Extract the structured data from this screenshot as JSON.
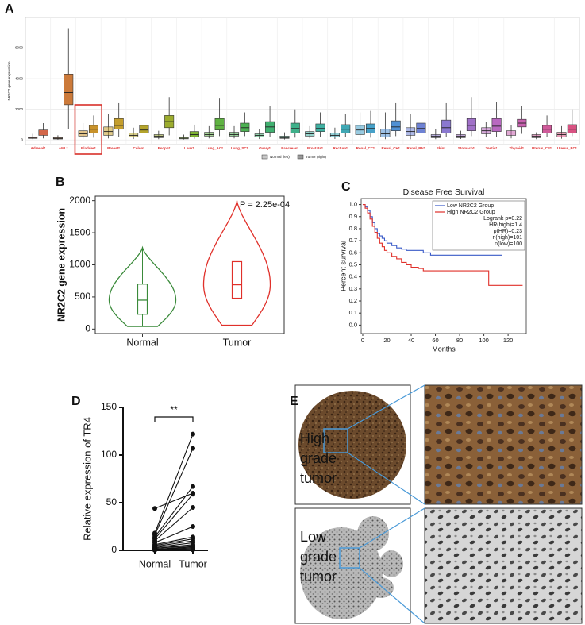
{
  "chart_data": [
    {
      "type": "box",
      "panel": "A",
      "y_label": "NR2C2 gene expression",
      "categories": [
        "Adrenal*",
        "AML*",
        "Bladder*",
        "Breast*",
        "Colon*",
        "Esoph*",
        "Liver*",
        "Lung_AC*",
        "Lung_SC*",
        "Ovary*",
        "Pancreas*",
        "Prostate*",
        "Rectum*",
        "Renal_CC*",
        "Renal_CH*",
        "Renal_PA*",
        "Skin*",
        "Stomach*",
        "Testis*",
        "Thyroid*",
        "Uterus_CS*",
        "Uterus_EC*"
      ],
      "colors": [
        "#d4684a",
        "#cc7a3a",
        "#c8922a",
        "#c49e2c",
        "#b4a42c",
        "#9cac2e",
        "#7eb232",
        "#5fb242",
        "#4cb052",
        "#40b070",
        "#3fb08a",
        "#3fb0a2",
        "#40a8b4",
        "#46a0c8",
        "#5090d4",
        "#6e82d4",
        "#8a78d0",
        "#a070c8",
        "#b868c0",
        "#c862b0",
        "#d05a9a",
        "#d85282"
      ],
      "label_color": "#e03030",
      "highlight": "Bladder*",
      "highlight_color": "#d8302a",
      "ylim": [
        -300,
        8000
      ],
      "yticks": [
        0,
        2000,
        4000,
        6000
      ],
      "grid": true,
      "series": [
        {
          "name": "Normal (left)",
          "opacity": 0.55,
          "values": [
            [
              50,
              100,
              150,
              200,
              400
            ],
            [
              20,
              60,
              100,
              150,
              300
            ],
            [
              80,
              250,
              400,
              600,
              1100
            ],
            [
              100,
              300,
              550,
              850,
              1700
            ],
            [
              60,
              200,
              300,
              450,
              800
            ],
            [
              50,
              150,
              250,
              350,
              600
            ],
            [
              30,
              70,
              120,
              180,
              350
            ],
            [
              100,
              250,
              350,
              500,
              900
            ],
            [
              100,
              250,
              350,
              500,
              900
            ],
            [
              60,
              200,
              300,
              400,
              700
            ],
            [
              30,
              100,
              150,
              250,
              500
            ],
            [
              100,
              250,
              400,
              550,
              900
            ],
            [
              60,
              200,
              300,
              450,
              800
            ],
            [
              50,
              350,
              650,
              950,
              1800
            ],
            [
              50,
              200,
              400,
              700,
              1800
            ],
            [
              50,
              300,
              550,
              800,
              1700
            ],
            [
              50,
              150,
              250,
              350,
              700
            ],
            [
              60,
              150,
              250,
              350,
              600
            ],
            [
              200,
              400,
              600,
              800,
              1200
            ],
            [
              100,
              300,
              450,
              600,
              1000
            ],
            [
              50,
              150,
              250,
              350,
              500
            ],
            [
              80,
              200,
              350,
              500,
              900
            ]
          ]
        },
        {
          "name": "Tumor (right)",
          "opacity": 1,
          "values": [
            [
              100,
              300,
              450,
              650,
              1100
            ],
            [
              700,
              2300,
              3100,
              4300,
              7300
            ],
            [
              150,
              450,
              700,
              950,
              1600
            ],
            [
              200,
              700,
              950,
              1400,
              2400
            ],
            [
              150,
              450,
              650,
              950,
              1800
            ],
            [
              300,
              800,
              1200,
              1600,
              2800
            ],
            [
              80,
              200,
              350,
              550,
              1000
            ],
            [
              250,
              650,
              950,
              1400,
              2700
            ],
            [
              250,
              550,
              800,
              1100,
              1800
            ],
            [
              200,
              500,
              850,
              1200,
              2200
            ],
            [
              150,
              450,
              750,
              1100,
              2000
            ],
            [
              200,
              550,
              750,
              1050,
              1800
            ],
            [
              200,
              450,
              700,
              1000,
              1700
            ],
            [
              150,
              450,
              750,
              1050,
              1900
            ],
            [
              250,
              600,
              850,
              1250,
              2400
            ],
            [
              200,
              450,
              750,
              1100,
              2100
            ],
            [
              200,
              450,
              800,
              1300,
              2400
            ],
            [
              250,
              600,
              950,
              1400,
              2800
            ],
            [
              200,
              550,
              900,
              1400,
              2500
            ],
            [
              400,
              850,
              1100,
              1350,
              2200
            ],
            [
              200,
              450,
              700,
              950,
              1600
            ],
            [
              250,
              450,
              700,
              1000,
              2000
            ]
          ]
        }
      ]
    },
    {
      "type": "violin",
      "panel": "B",
      "y_label": "NR2C2 gene expression",
      "annotation": "P = 2.25e-04",
      "categories": [
        "Normal",
        "Tumor"
      ],
      "colors": [
        "#3a8a3a",
        "#e0302a"
      ],
      "values": [
        [
          40,
          230,
          450,
          700,
          1270
        ],
        [
          60,
          480,
          690,
          1050,
          2000
        ]
      ],
      "ylim": [
        -70,
        2070
      ],
      "yticks": [
        0,
        500,
        1000,
        1500,
        2000
      ]
    },
    {
      "type": "survival",
      "panel": "C",
      "title": "Disease Free Survival",
      "x_label": "Months",
      "y_label": "Percent survival",
      "xlim": [
        -1.3,
        135
      ],
      "xticks": [
        0,
        20,
        40,
        60,
        80,
        100,
        120
      ],
      "ylim": [
        -0.07,
        1.05
      ],
      "yticks": [
        {
          "value": 0,
          "label": "0.0"
        },
        {
          "value": 0.1,
          "label": "0.1"
        },
        {
          "value": 0.2,
          "label": "0.2"
        },
        {
          "value": 0.3,
          "label": "0.3"
        },
        {
          "value": 0.4,
          "label": "0.4"
        },
        {
          "value": 0.5,
          "label": "0.5"
        },
        {
          "value": 0.6,
          "label": "0.6"
        },
        {
          "value": 0.7,
          "label": "0.7"
        },
        {
          "value": 0.8,
          "label": "0.8"
        },
        {
          "value": 0.9,
          "label": "0.9"
        },
        {
          "value": 1,
          "label": "1.0"
        }
      ],
      "series": [
        {
          "name": "Low NR2C2 Group",
          "color": "#3a5bc8",
          "x": [
            0,
            2,
            4,
            6,
            8,
            10,
            12,
            14,
            16,
            18,
            20,
            24,
            28,
            32,
            36,
            42,
            50,
            56,
            60,
            70,
            80,
            100,
            115
          ],
          "y": [
            1,
            0.98,
            0.95,
            0.9,
            0.85,
            0.8,
            0.76,
            0.74,
            0.72,
            0.7,
            0.68,
            0.66,
            0.64,
            0.63,
            0.62,
            0.62,
            0.6,
            0.58,
            0.58,
            0.58,
            0.58,
            0.58,
            0.58
          ]
        },
        {
          "name": "High NR2C2 Group",
          "color": "#e0302a",
          "x": [
            0,
            2,
            4,
            6,
            8,
            10,
            12,
            14,
            16,
            18,
            20,
            24,
            28,
            32,
            36,
            40,
            46,
            50,
            56,
            62,
            70,
            80,
            100,
            104,
            115,
            132
          ],
          "y": [
            1,
            0.97,
            0.93,
            0.88,
            0.82,
            0.77,
            0.72,
            0.68,
            0.65,
            0.62,
            0.6,
            0.57,
            0.55,
            0.52,
            0.5,
            0.48,
            0.47,
            0.45,
            0.45,
            0.45,
            0.45,
            0.45,
            0.45,
            0.33,
            0.33,
            0.33
          ]
        }
      ],
      "legend_notes": [
        "Logrank p=0.22",
        "HR(high)=1.4",
        "p(HR)=0.23",
        "n(high)=101",
        "n(low)=100"
      ]
    },
    {
      "type": "paired",
      "panel": "D",
      "y_label": "Relative expression of TR4",
      "annotation": "**",
      "categories": [
        "Normal",
        "Tumor"
      ],
      "values": [
        [
          44,
          60
        ],
        [
          18,
          122
        ],
        [
          16,
          107
        ],
        [
          14,
          67
        ],
        [
          12,
          59
        ],
        [
          10,
          45
        ],
        [
          8,
          25
        ],
        [
          6,
          14
        ],
        [
          5,
          12
        ],
        [
          4,
          10
        ],
        [
          3,
          8
        ],
        [
          2,
          6
        ],
        [
          2,
          5
        ],
        [
          1,
          4
        ],
        [
          1,
          3
        ],
        [
          0.5,
          2
        ],
        [
          0.5,
          1
        ],
        [
          0.3,
          1
        ],
        [
          0.2,
          0.5
        ]
      ],
      "ylim": [
        0,
        150
      ],
      "yticks": [
        0,
        50,
        100,
        150
      ]
    }
  ],
  "panel_e": {
    "panel": "E",
    "rows": [
      {
        "label": [
          "High",
          "grade",
          "tumor"
        ]
      },
      {
        "label": [
          "Low",
          "grade",
          "tumor"
        ]
      }
    ]
  }
}
